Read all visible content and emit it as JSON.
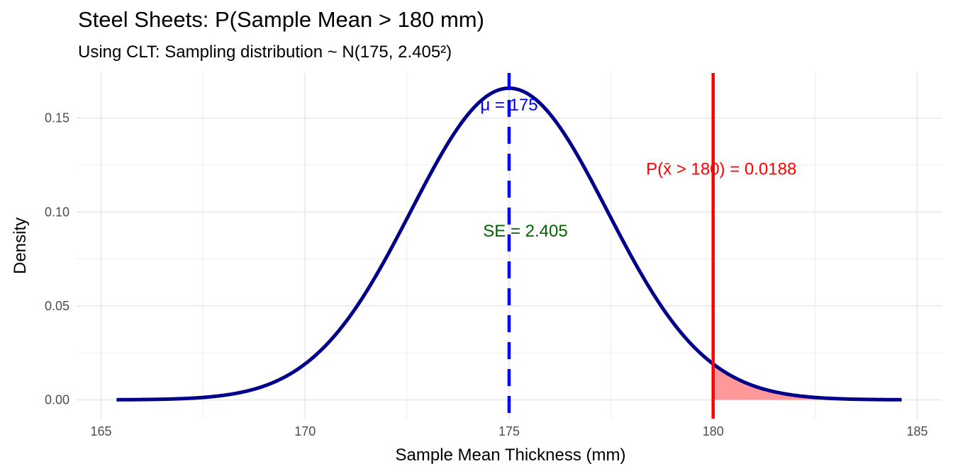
{
  "chart_data": {
    "type": "area",
    "title": "Steel Sheets: P(Sample Mean > 180 mm)",
    "subtitle": "Using CLT: Sampling distribution ~ N(175, 2.405²)",
    "xlabel": "Sample Mean Thickness (mm)",
    "ylabel": "Density",
    "xlim": [
      164.4,
      185.6
    ],
    "ylim": [
      -0.01,
      0.174
    ],
    "x_range": [
      165.38,
      184.62
    ],
    "xticks": [
      165,
      170,
      175,
      180,
      185
    ],
    "xtick_labels": [
      "165",
      "170",
      "175",
      "180",
      "185"
    ],
    "yticks": [
      0.0,
      0.05,
      0.1,
      0.15
    ],
    "ytick_labels": [
      "0.00",
      "0.05",
      "0.10",
      "0.15"
    ],
    "grid": true,
    "series": [
      {
        "name": "Normal density",
        "mean": 175,
        "sd": 2.405,
        "color": "#00008B"
      }
    ],
    "shaded_region": {
      "from": 180,
      "to": 184.62,
      "color": "#FF9999"
    },
    "vlines": [
      {
        "name": "mean line",
        "x": 175,
        "style": "dashed",
        "color": "#0000FF"
      },
      {
        "name": "threshold line",
        "x": 180,
        "style": "solid",
        "color": "#FF0000"
      }
    ],
    "annotations": [
      {
        "name": "mu-label",
        "text": "μ = 175",
        "x": 175,
        "y": 0.157,
        "color": "#0000FF"
      },
      {
        "name": "se-label",
        "text": "SE = 2.405",
        "x": 175.4,
        "y": 0.09,
        "color": "#006400"
      },
      {
        "name": "prob-label",
        "text": "P(x̄ > 180) = 0.0188",
        "x": 180.2,
        "y": 0.123,
        "color": "#FF0000"
      }
    ]
  }
}
